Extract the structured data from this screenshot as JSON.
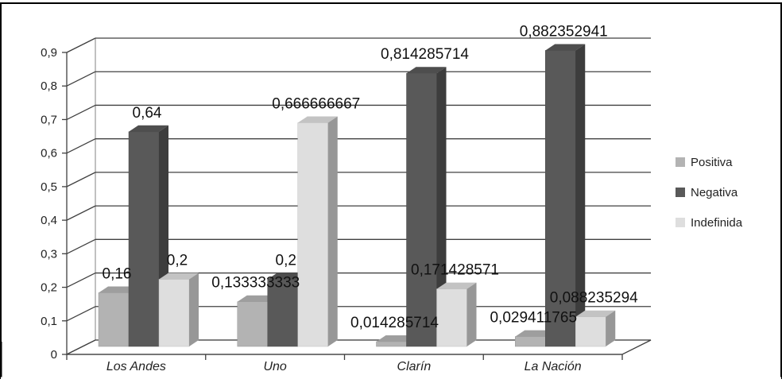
{
  "chart_data": {
    "type": "bar",
    "categories": [
      "Los Andes",
      "Uno",
      "Clarín",
      "La Nación"
    ],
    "series": [
      {
        "name": "Positiva",
        "values": [
          0.16,
          0.133333333,
          0.014285714,
          0.029411765
        ],
        "labels": [
          "0,16",
          "0,133333333",
          "0,014285714",
          "0,029411765"
        ],
        "color": "#b3b3b3"
      },
      {
        "name": "Negativa",
        "values": [
          0.64,
          0.2,
          0.814285714,
          0.882352941
        ],
        "labels": [
          "0,64",
          "0,2",
          "0,814285714",
          "0,882352941"
        ],
        "color": "#595959"
      },
      {
        "name": "Indefinida",
        "values": [
          0.2,
          0.666666667,
          0.171428571,
          0.088235294
        ],
        "labels": [
          "0,2",
          "0,666666667",
          "0,171428571",
          "0,088235294"
        ],
        "color": "#dedede"
      }
    ],
    "yticks": [
      "0",
      "0,1",
      "0,2",
      "0,3",
      "0,4",
      "0,5",
      "0,6",
      "0,7",
      "0,8",
      "0,9"
    ],
    "ylim": [
      0,
      0.9
    ],
    "grid": true,
    "legend": "right",
    "title": "",
    "xlabel": "",
    "ylabel": ""
  }
}
